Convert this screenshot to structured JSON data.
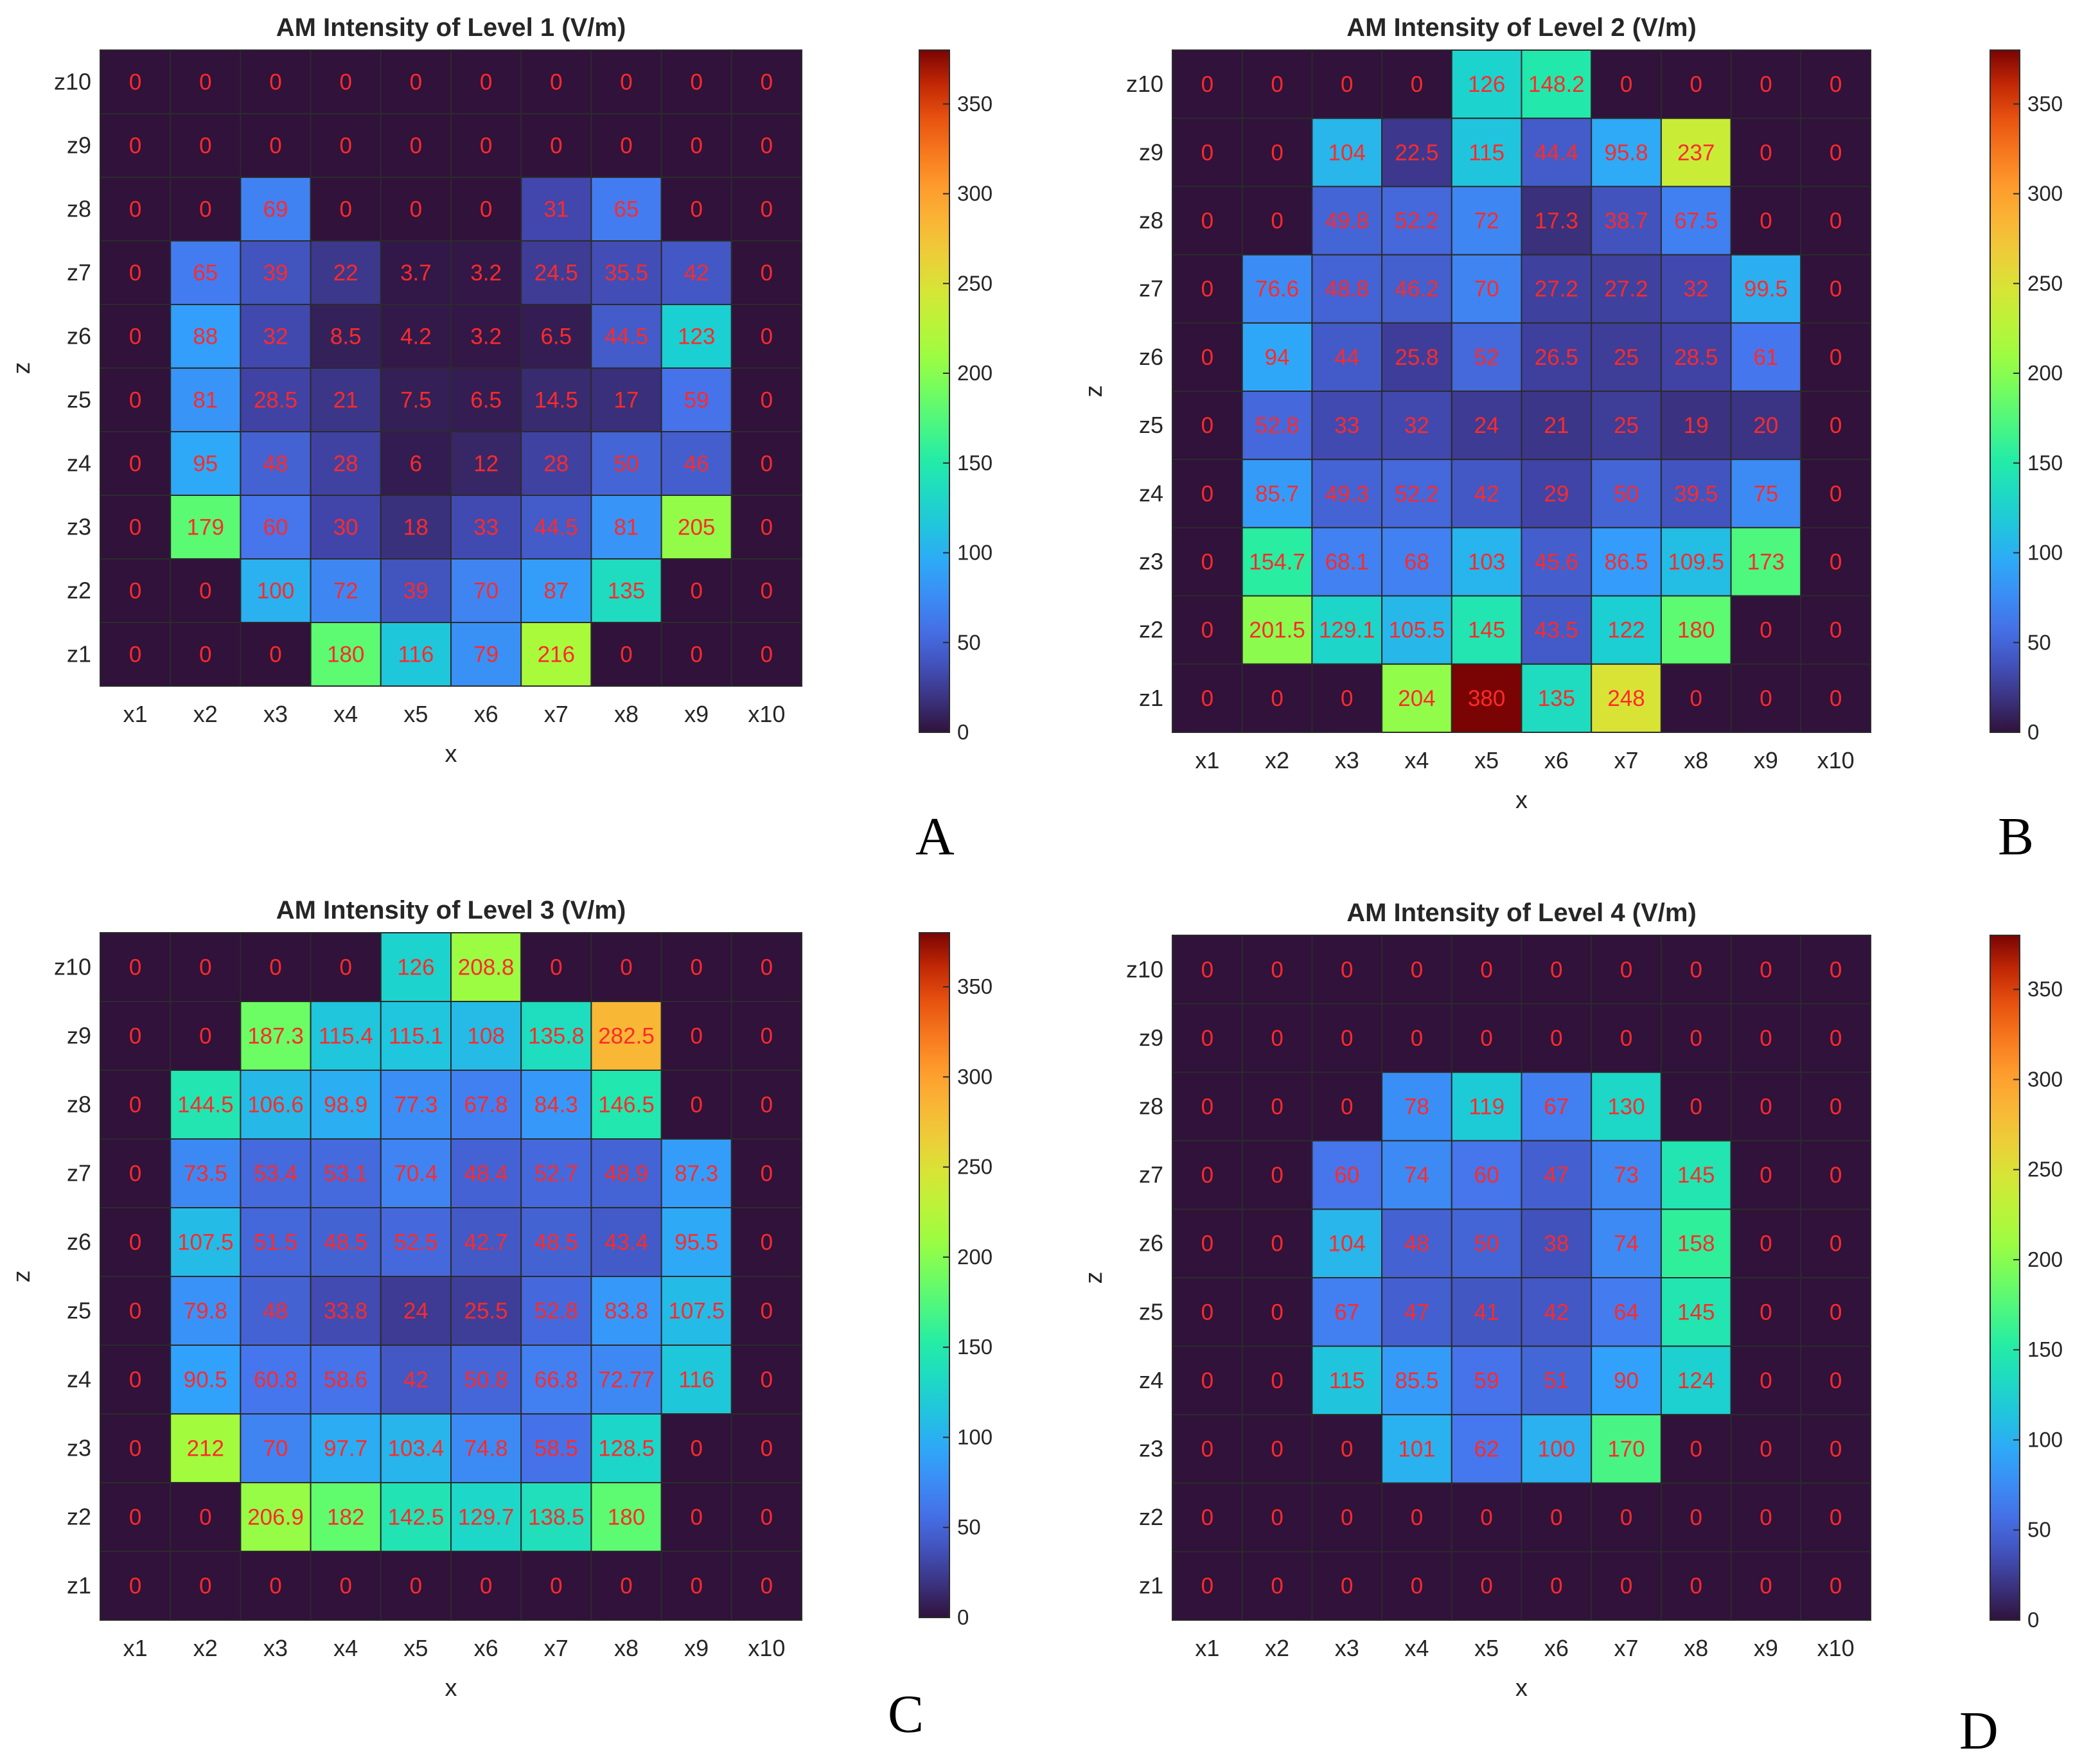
{
  "chart_data": [
    {
      "type": "heatmap",
      "panel": "A",
      "title": "AM Intensity of Level 1 (V/m)",
      "xlabel": "x",
      "ylabel": "z",
      "x_categories": [
        "x1",
        "x2",
        "x3",
        "x4",
        "x5",
        "x6",
        "x7",
        "x8",
        "x9",
        "x10"
      ],
      "z_categories": [
        "z10",
        "z9",
        "z8",
        "z7",
        "z6",
        "z5",
        "z4",
        "z3",
        "z2",
        "z1"
      ],
      "colorbar": {
        "min": 0,
        "max": 380,
        "ticks": [
          0,
          50,
          100,
          150,
          200,
          250,
          300,
          350
        ]
      },
      "values": [
        [
          "0",
          "0",
          "0",
          "0",
          "0",
          "0",
          "0",
          "0",
          "0",
          "0"
        ],
        [
          "0",
          "0",
          "0",
          "0",
          "0",
          "0",
          "0",
          "0",
          "0",
          "0"
        ],
        [
          "0",
          "0",
          "69",
          "0",
          "0",
          "0",
          "31",
          "65",
          "0",
          "0"
        ],
        [
          "0",
          "65",
          "39",
          "22",
          "3.7",
          "3.2",
          "24.5",
          "35.5",
          "42",
          "0"
        ],
        [
          "0",
          "88",
          "32",
          "8.5",
          "4.2",
          "3.2",
          "6.5",
          "44.5",
          "123",
          "0"
        ],
        [
          "0",
          "81",
          "28.5",
          "21",
          "7.5",
          "6.5",
          "14.5",
          "17",
          "59",
          "0"
        ],
        [
          "0",
          "95",
          "48",
          "28",
          "6",
          "12",
          "28",
          "50",
          "46",
          "0"
        ],
        [
          "0",
          "179",
          "60",
          "30",
          "18",
          "33",
          "44.5",
          "81",
          "205",
          "0"
        ],
        [
          "0",
          "0",
          "100",
          "72",
          "39",
          "70",
          "87",
          "135",
          "0",
          "0"
        ],
        [
          "0",
          "0",
          "0",
          "180",
          "116",
          "79",
          "216",
          "0",
          "0",
          "0"
        ]
      ]
    },
    {
      "type": "heatmap",
      "panel": "B",
      "title": "AM Intensity of Level 2 (V/m)",
      "xlabel": "x",
      "ylabel": "z",
      "x_categories": [
        "x1",
        "x2",
        "x3",
        "x4",
        "x5",
        "x6",
        "x7",
        "x8",
        "x9",
        "x10"
      ],
      "z_categories": [
        "z10",
        "z9",
        "z8",
        "z7",
        "z6",
        "z5",
        "z4",
        "z3",
        "z2",
        "z1"
      ],
      "colorbar": {
        "min": 0,
        "max": 380,
        "ticks": [
          0,
          50,
          100,
          150,
          200,
          250,
          300,
          350
        ]
      },
      "values": [
        [
          "0",
          "0",
          "0",
          "0",
          "126",
          "148.2",
          "0",
          "0",
          "0",
          "0"
        ],
        [
          "0",
          "0",
          "104",
          "22.5",
          "115",
          "44.4",
          "95.8",
          "237",
          "0",
          "0"
        ],
        [
          "0",
          "0",
          "49.8",
          "52.2",
          "72",
          "17.3",
          "38.7",
          "67.5",
          "0",
          "0"
        ],
        [
          "0",
          "76.6",
          "48.8",
          "46.2",
          "70",
          "27.2",
          "27.2",
          "32",
          "99.5",
          "0"
        ],
        [
          "0",
          "94",
          "44",
          "25.8",
          "52",
          "26.5",
          "25",
          "28.5",
          "61",
          "0"
        ],
        [
          "0",
          "52.8",
          "33",
          "32",
          "24",
          "21",
          "25",
          "19",
          "20",
          "0"
        ],
        [
          "0",
          "85.7",
          "49.3",
          "52.2",
          "42",
          "29",
          "50",
          "39.5",
          "75",
          "0"
        ],
        [
          "0",
          "154.7",
          "68.1",
          "68",
          "103",
          "45.6",
          "86.5",
          "109.5",
          "173",
          "0"
        ],
        [
          "0",
          "201.5",
          "129.1",
          "105.5",
          "145",
          "43.5",
          "122",
          "180",
          "0",
          "0"
        ],
        [
          "0",
          "0",
          "0",
          "204",
          "380",
          "135",
          "248",
          "0",
          "0",
          "0"
        ]
      ]
    },
    {
      "type": "heatmap",
      "panel": "C",
      "title": "AM Intensity of Level 3 (V/m)",
      "xlabel": "x",
      "ylabel": "z",
      "x_categories": [
        "x1",
        "x2",
        "x3",
        "x4",
        "x5",
        "x6",
        "x7",
        "x8",
        "x9",
        "x10"
      ],
      "z_categories": [
        "z10",
        "z9",
        "z8",
        "z7",
        "z6",
        "z5",
        "z4",
        "z3",
        "z2",
        "z1"
      ],
      "colorbar": {
        "min": 0,
        "max": 380,
        "ticks": [
          0,
          50,
          100,
          150,
          200,
          250,
          300,
          350
        ]
      },
      "values": [
        [
          "0",
          "0",
          "0",
          "0",
          "126",
          "208.8",
          "0",
          "0",
          "0",
          "0"
        ],
        [
          "0",
          "0",
          "187.3",
          "115.4",
          "115.1",
          "108",
          "135.8",
          "282.5",
          "0",
          "0"
        ],
        [
          "0",
          "144.5",
          "106.6",
          "98.9",
          "77.3",
          "67.8",
          "84.3",
          "146.5",
          "0",
          "0"
        ],
        [
          "0",
          "73.5",
          "53.4",
          "53.1",
          "70.4",
          "48.4",
          "52.7",
          "48.9",
          "87.3",
          "0"
        ],
        [
          "0",
          "107.5",
          "51.5",
          "48.5",
          "52.5",
          "42.7",
          "48.5",
          "43.4",
          "95.5",
          "0"
        ],
        [
          "0",
          "79.8",
          "48",
          "33.8",
          "24",
          "25.5",
          "52.8",
          "83.8",
          "107.5",
          "0"
        ],
        [
          "0",
          "90.5",
          "60.8",
          "58.6",
          "42",
          "50.8",
          "66.8",
          "72.77",
          "116",
          "0"
        ],
        [
          "0",
          "212",
          "70",
          "97.7",
          "103.4",
          "74.8",
          "58.5",
          "128.5",
          "0",
          "0"
        ],
        [
          "0",
          "0",
          "206.9",
          "182",
          "142.5",
          "129.7",
          "138.5",
          "180",
          "0",
          "0"
        ],
        [
          "0",
          "0",
          "0",
          "0",
          "0",
          "0",
          "0",
          "0",
          "0",
          "0"
        ]
      ]
    },
    {
      "type": "heatmap",
      "panel": "D",
      "title": "AM Intensity of Level 4 (V/m)",
      "xlabel": "x",
      "ylabel": "z",
      "x_categories": [
        "x1",
        "x2",
        "x3",
        "x4",
        "x5",
        "x6",
        "x7",
        "x8",
        "x9",
        "x10"
      ],
      "z_categories": [
        "z10",
        "z9",
        "z8",
        "z7",
        "z6",
        "z5",
        "z4",
        "z3",
        "z2",
        "z1"
      ],
      "colorbar": {
        "min": 0,
        "max": 380,
        "ticks": [
          0,
          50,
          100,
          150,
          200,
          250,
          300,
          350
        ]
      },
      "values": [
        [
          "0",
          "0",
          "0",
          "0",
          "0",
          "0",
          "0",
          "0",
          "0",
          "0"
        ],
        [
          "0",
          "0",
          "0",
          "0",
          "0",
          "0",
          "0",
          "0",
          "0",
          "0"
        ],
        [
          "0",
          "0",
          "0",
          "78",
          "119",
          "67",
          "130",
          "0",
          "0",
          "0"
        ],
        [
          "0",
          "0",
          "60",
          "74",
          "60",
          "47",
          "73",
          "145",
          "0",
          "0"
        ],
        [
          "0",
          "0",
          "104",
          "48",
          "50",
          "38",
          "74",
          "158",
          "0",
          "0"
        ],
        [
          "0",
          "0",
          "67",
          "47",
          "41",
          "42",
          "64",
          "145",
          "0",
          "0"
        ],
        [
          "0",
          "0",
          "115",
          "85.5",
          "59",
          "51",
          "90",
          "124",
          "0",
          "0"
        ],
        [
          "0",
          "0",
          "0",
          "101",
          "62",
          "100",
          "170",
          "0",
          "0",
          "0"
        ],
        [
          "0",
          "0",
          "0",
          "0",
          "0",
          "0",
          "0",
          "0",
          "0",
          "0"
        ],
        [
          "0",
          "0",
          "0",
          "0",
          "0",
          "0",
          "0",
          "0",
          "0",
          "0"
        ]
      ]
    }
  ]
}
